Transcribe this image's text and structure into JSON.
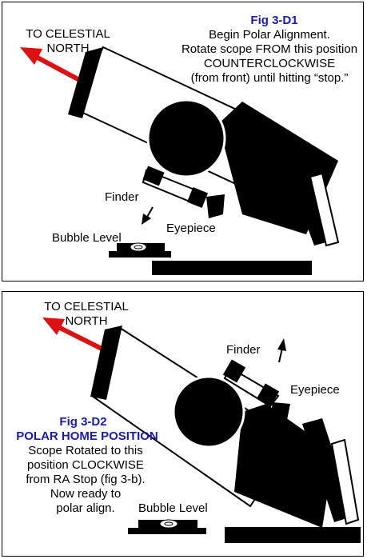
{
  "panel_a": {
    "fig_title": "Fig 3-D1",
    "instruction_lines": [
      "Begin Polar Alignment.",
      "Rotate scope FROM this position",
      "COUNTERCLOCKWISE",
      "(from front) until hitting “stop.”"
    ],
    "direction_label_line1": "TO CELESTIAL",
    "direction_label_line2": "NORTH",
    "finder_label": "Finder",
    "eyepiece_label": "Eyepiece",
    "bubble_level_label": "Bubble Level"
  },
  "panel_b": {
    "fig_title": "Fig 3-D2",
    "subtitle": "POLAR HOME POSITION",
    "note_lines": [
      "Scope Rotated to this",
      "position CLOCKWISE",
      "from RA Stop (fig 3-b).",
      "Now ready to",
      "polar align."
    ],
    "direction_label_line1": "TO CELESTIAL",
    "direction_label_line2": "NORTH",
    "finder_label": "Finder",
    "eyepiece_label": "Eyepiece",
    "bubble_level_label": "Bubble Level"
  },
  "colors": {
    "arrow": "#dd1111",
    "title_blue": "#1a1aa8",
    "ink": "#000000"
  }
}
